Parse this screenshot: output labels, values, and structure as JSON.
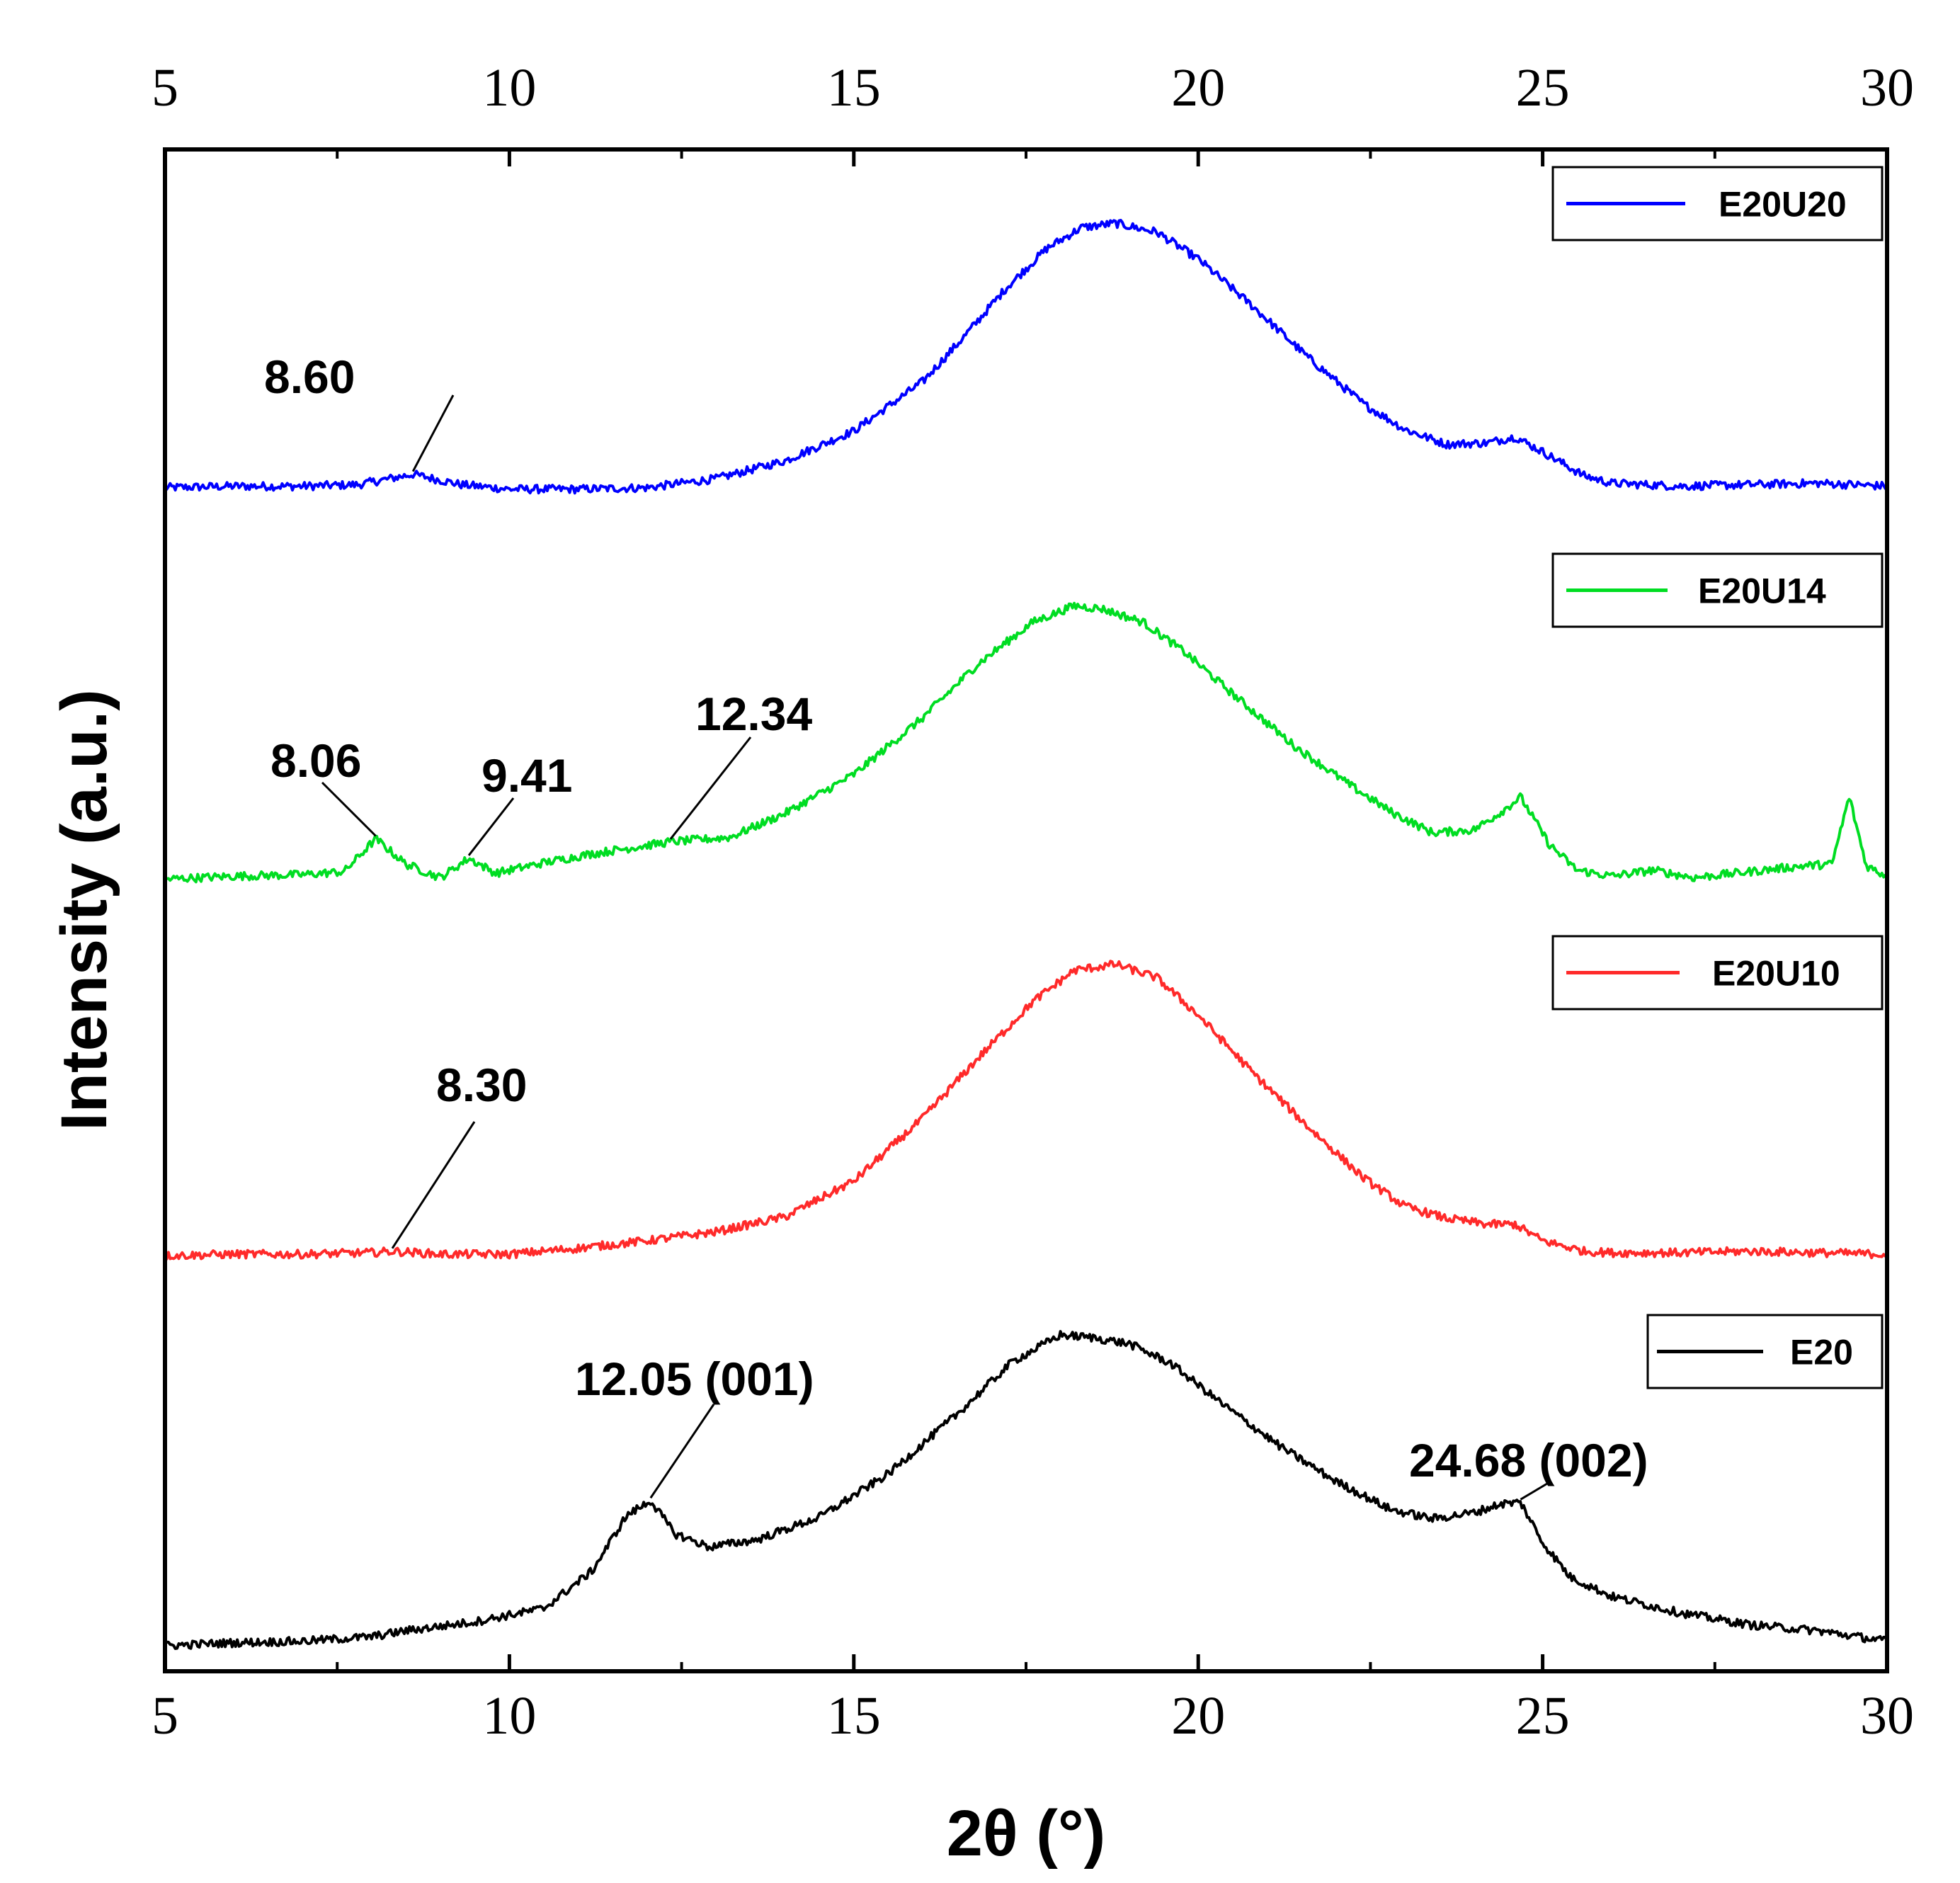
{
  "chart_data": {
    "type": "line",
    "xlabel": "2θ (°)",
    "ylabel": "Intensity (a.u.)",
    "xlim": [
      5,
      30
    ],
    "x_ticks": [
      5,
      10,
      15,
      20,
      25,
      30
    ],
    "top_axis_ticks": [
      5,
      10,
      15,
      20,
      25,
      30
    ],
    "ylim": [
      0,
      100
    ],
    "y_ticks_shown": false,
    "grid": false,
    "series": [
      {
        "name": "E20U20",
        "color": "#0000ff",
        "x": [
          5,
          6,
          7,
          7.8,
          8.6,
          9.3,
          10,
          11,
          12,
          13,
          14,
          15,
          16,
          16.6,
          17.2,
          17.8,
          18.3,
          18.8,
          19.4,
          20,
          20.8,
          21.6,
          22.4,
          23,
          23.6,
          24.2,
          24.6,
          25,
          25.6,
          26,
          27,
          28,
          29,
          30
        ],
        "values": [
          78.5,
          78.6,
          78.6,
          78.7,
          79.4,
          78.7,
          78.4,
          78.4,
          78.5,
          79.1,
          80.3,
          82.3,
          85.6,
          88.6,
          91.8,
          94.5,
          95.9,
          96.2,
          95.6,
          93.8,
          90.6,
          87.2,
          84.1,
          82.4,
          81.4,
          81.5,
          81.9,
          80.9,
          79.3,
          78.8,
          78.6,
          78.7,
          78.8,
          78.6
        ]
      },
      {
        "name": "E20U14",
        "color": "#00dd22",
        "x": [
          5,
          6,
          7,
          7.6,
          8.06,
          8.5,
          9.0,
          9.41,
          9.8,
          10.5,
          11.2,
          12.34,
          13.2,
          14,
          15,
          16,
          16.8,
          17.6,
          18.2,
          18.6,
          19.2,
          19.8,
          20.6,
          21.4,
          22.2,
          22.8,
          23.4,
          24,
          24.4,
          24.68,
          25.1,
          25.5,
          26,
          26.6,
          27.2,
          28,
          28.8,
          29.2,
          29.45,
          29.7,
          30
        ],
        "values": [
          52.3,
          52.5,
          52.6,
          52.8,
          55.0,
          53.3,
          52.4,
          53.7,
          52.7,
          53.4,
          54.0,
          54.8,
          55.1,
          56.7,
          59.3,
          63.1,
          66.7,
          69.5,
          70.6,
          70.4,
          69.5,
          67.5,
          64.3,
          61.2,
          58.6,
          56.8,
          55.4,
          55.6,
          56.8,
          57.8,
          54.6,
          52.9,
          52.5,
          52.9,
          52.4,
          52.8,
          53.2,
          53.3,
          57.8,
          53.2,
          52.5
        ]
      },
      {
        "name": "E20U10",
        "color": "#ff2a2a",
        "x": [
          5,
          6,
          7,
          8,
          8.3,
          9,
          10,
          11,
          12,
          13,
          14,
          15,
          16,
          16.8,
          17.6,
          18.2,
          18.8,
          19.4,
          20,
          20.8,
          21.6,
          22.4,
          23,
          23.6,
          24.2,
          24.6,
          25,
          25.6,
          26,
          27,
          28,
          29,
          30
        ],
        "values": [
          27.1,
          27.2,
          27.2,
          27.3,
          27.4,
          27.2,
          27.2,
          27.6,
          28.1,
          28.7,
          29.7,
          32.1,
          36.3,
          40.3,
          44.1,
          46.2,
          46.6,
          45.7,
          43.2,
          39.3,
          35.7,
          32.3,
          30.4,
          29.6,
          29.2,
          29.2,
          28.1,
          27.4,
          27.3,
          27.3,
          27.4,
          27.3,
          27.2
        ]
      },
      {
        "name": "E20",
        "color": "#000000",
        "x": [
          5,
          6,
          7,
          8,
          8.5,
          9.5,
          10.5,
          11.2,
          11.7,
          12.05,
          12.4,
          12.9,
          13.6,
          14.5,
          15.5,
          16.5,
          17.3,
          18.0,
          18.5,
          19,
          19.6,
          20.4,
          21.2,
          22,
          22.8,
          23.4,
          24,
          24.4,
          24.68,
          25,
          25.4,
          26,
          27,
          28,
          29,
          30
        ],
        "values": [
          1.0,
          1.2,
          1.3,
          1.6,
          2.0,
          2.6,
          3.5,
          6.0,
          9.7,
          10.7,
          8.5,
          7.6,
          8.1,
          9.6,
          12.5,
          16.5,
          20.0,
          21.8,
          21.6,
          21.2,
          19.9,
          17.0,
          14.3,
          12.0,
          10.1,
          9.5,
          9.9,
          10.5,
          10.6,
          7.9,
          5.6,
          4.3,
          3.2,
          2.4,
          2.0,
          1.3
        ]
      }
    ],
    "annotations": [
      {
        "label": "8.60",
        "series": "E20U20",
        "x": 8.6
      },
      {
        "label": "8.06",
        "series": "E20U14",
        "x": 8.06
      },
      {
        "label": "9.41",
        "series": "E20U14",
        "x": 9.41
      },
      {
        "label": "12.34",
        "series": "E20U14",
        "x": 12.34
      },
      {
        "label": "8.30",
        "series": "E20U10",
        "x": 8.3
      },
      {
        "label": "12.05 (001)",
        "series": "E20",
        "x": 12.05
      },
      {
        "label": "24.68 (002)",
        "series": "E20",
        "x": 24.68
      }
    ]
  }
}
